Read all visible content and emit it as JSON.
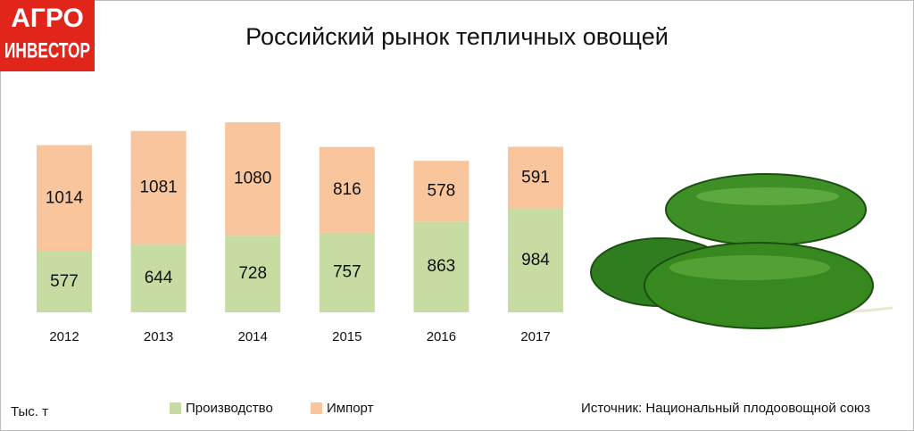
{
  "logo": [
    "АГРО",
    "ИНВЕСТОР"
  ],
  "chart_data": {
    "type": "stacked-bar",
    "title": "Российский рынок тепличных овощей",
    "unit_label": "Тыс. т",
    "source": "Источник: Национальный плодоовощной союз",
    "categories": [
      "2012",
      "2013",
      "2014",
      "2015",
      "2016",
      "2017"
    ],
    "series": [
      {
        "name": "Производство",
        "color": "#c6dca2",
        "values": [
          577,
          644,
          728,
          757,
          863,
          984
        ]
      },
      {
        "name": "Импорт",
        "color": "#f9c59d",
        "values": [
          1014,
          1081,
          1080,
          816,
          578,
          591
        ]
      }
    ]
  }
}
